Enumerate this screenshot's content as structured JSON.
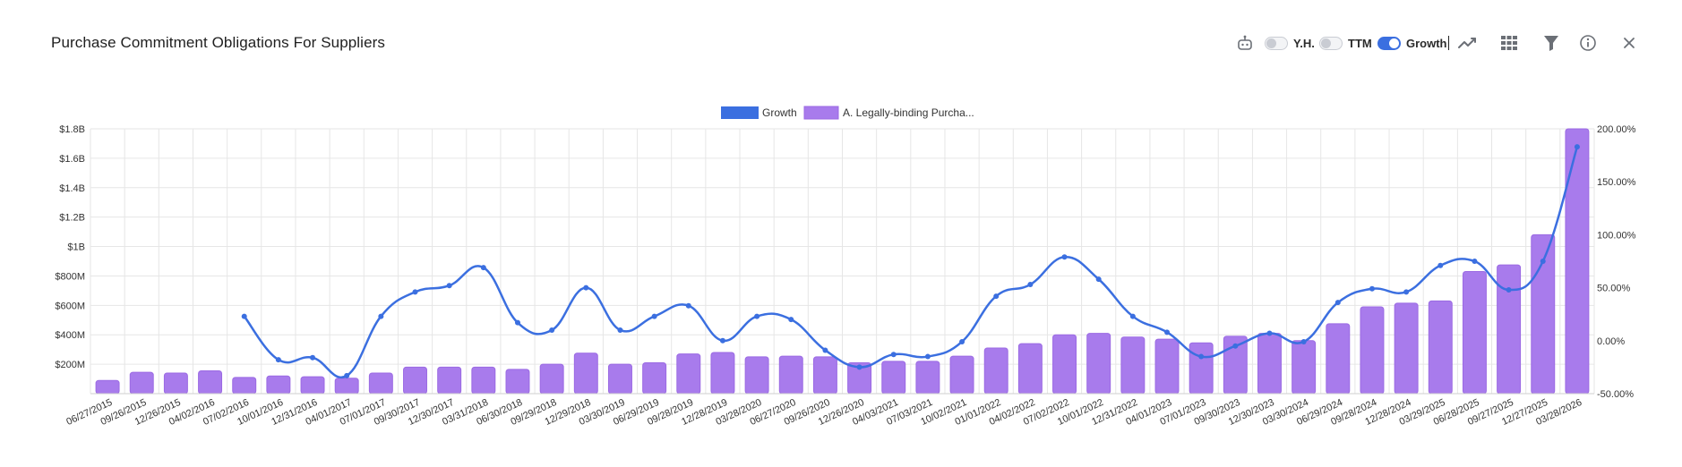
{
  "header": {
    "title": "Purchase Commitment Obligations For Suppliers"
  },
  "toolbar": {
    "ai_icon": "robot-icon",
    "yh_label": "Y.H.",
    "yh_on": false,
    "ttm_label": "TTM",
    "ttm_on": false,
    "growth_label": "Growth",
    "growth_on": true,
    "chart_type_icon": "line-chart-icon",
    "grid_icon": "grid-icon",
    "filter_icon": "filter-icon",
    "info_icon": "info-icon",
    "close_icon": "close-icon"
  },
  "colors": {
    "bar": "#a87bec",
    "bar_stroke": "#9b6ae3",
    "line": "#3b6fe0",
    "grid": "#e6e6e6",
    "accent": "#3b6fe0"
  },
  "chart_data": {
    "type": "bar",
    "legend": {
      "position": "top-center",
      "items": [
        {
          "name": "Growth",
          "color": "#3b6fe0"
        },
        {
          "name": "A. Legally-binding Purcha...",
          "color": "#a87bec"
        }
      ]
    },
    "categories": [
      "06/27/2015",
      "09/26/2015",
      "12/26/2015",
      "04/02/2016",
      "07/02/2016",
      "10/01/2016",
      "12/31/2016",
      "04/01/2017",
      "07/01/2017",
      "09/30/2017",
      "12/30/2017",
      "03/31/2018",
      "06/30/2018",
      "09/29/2018",
      "12/29/2018",
      "03/30/2019",
      "06/29/2019",
      "09/28/2019",
      "12/28/2019",
      "03/28/2020",
      "06/27/2020",
      "09/26/2020",
      "12/26/2020",
      "04/03/2021",
      "07/03/2021",
      "10/02/2021",
      "01/01/2022",
      "04/02/2022",
      "07/02/2022",
      "10/01/2022",
      "12/31/2022",
      "04/01/2023",
      "07/01/2023",
      "09/30/2023",
      "12/30/2023",
      "03/30/2024",
      "06/29/2024",
      "09/28/2024",
      "12/28/2024",
      "03/29/2025",
      "06/28/2025",
      "09/27/2025",
      "12/27/2025",
      "03/28/2026"
    ],
    "series": [
      {
        "name": "A. Legally-binding Purcha...",
        "type": "bar",
        "axis": "left",
        "values": [
          90,
          145,
          140,
          155,
          110,
          120,
          115,
          105,
          140,
          180,
          180,
          180,
          165,
          200,
          275,
          200,
          210,
          270,
          280,
          250,
          255,
          250,
          210,
          220,
          220,
          255,
          310,
          340,
          400,
          410,
          385,
          370,
          345,
          390,
          410,
          360,
          475,
          590,
          615,
          630,
          830,
          875,
          1080,
          1800
        ]
      },
      {
        "name": "Growth",
        "type": "line",
        "axis": "right",
        "values": [
          null,
          null,
          null,
          null,
          23,
          -18,
          -16,
          -33,
          23,
          46,
          52,
          69,
          17,
          10,
          50,
          10,
          23,
          33,
          0,
          23,
          20,
          -9,
          -25,
          -13,
          -15,
          -1,
          42,
          53,
          79,
          58,
          23,
          8,
          -15,
          -5,
          7,
          -1,
          36,
          49,
          46,
          71,
          75,
          48,
          75,
          183
        ]
      }
    ],
    "left_axis": {
      "min": 0,
      "max": 1800,
      "ticks": [
        "$200M",
        "$400M",
        "$600M",
        "$800M",
        "$1B",
        "$1.2B",
        "$1.4B",
        "$1.6B",
        "$1.8B"
      ]
    },
    "right_axis": {
      "min": -50,
      "max": 200,
      "ticks": [
        "-50.00%",
        "0.00%",
        "50.00%",
        "100.00%",
        "150.00%",
        "200.00%"
      ]
    },
    "grid": true
  }
}
